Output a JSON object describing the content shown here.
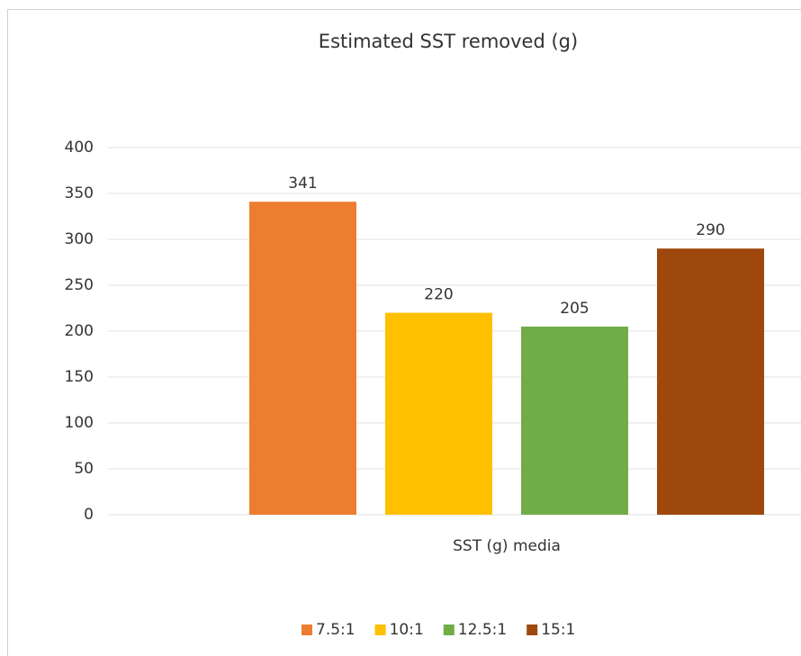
{
  "chart_data": {
    "type": "bar",
    "title": "Estimated SST removed (g)",
    "categories": [
      "SST (g) media"
    ],
    "series": [
      {
        "name": "7.5:1",
        "color": "#ed7d31",
        "values": [
          341
        ]
      },
      {
        "name": "10:1",
        "color": "#ffc000",
        "values": [
          220
        ]
      },
      {
        "name": "12.5:1",
        "color": "#70ad47",
        "values": [
          205
        ]
      },
      {
        "name": "15:1",
        "color": "#9e480e",
        "values": [
          290
        ]
      }
    ],
    "ylim": [
      0,
      400
    ],
    "yticks": [
      0,
      50,
      100,
      150,
      200,
      250,
      300,
      350,
      400
    ],
    "grid": true,
    "legend": "bottom"
  }
}
